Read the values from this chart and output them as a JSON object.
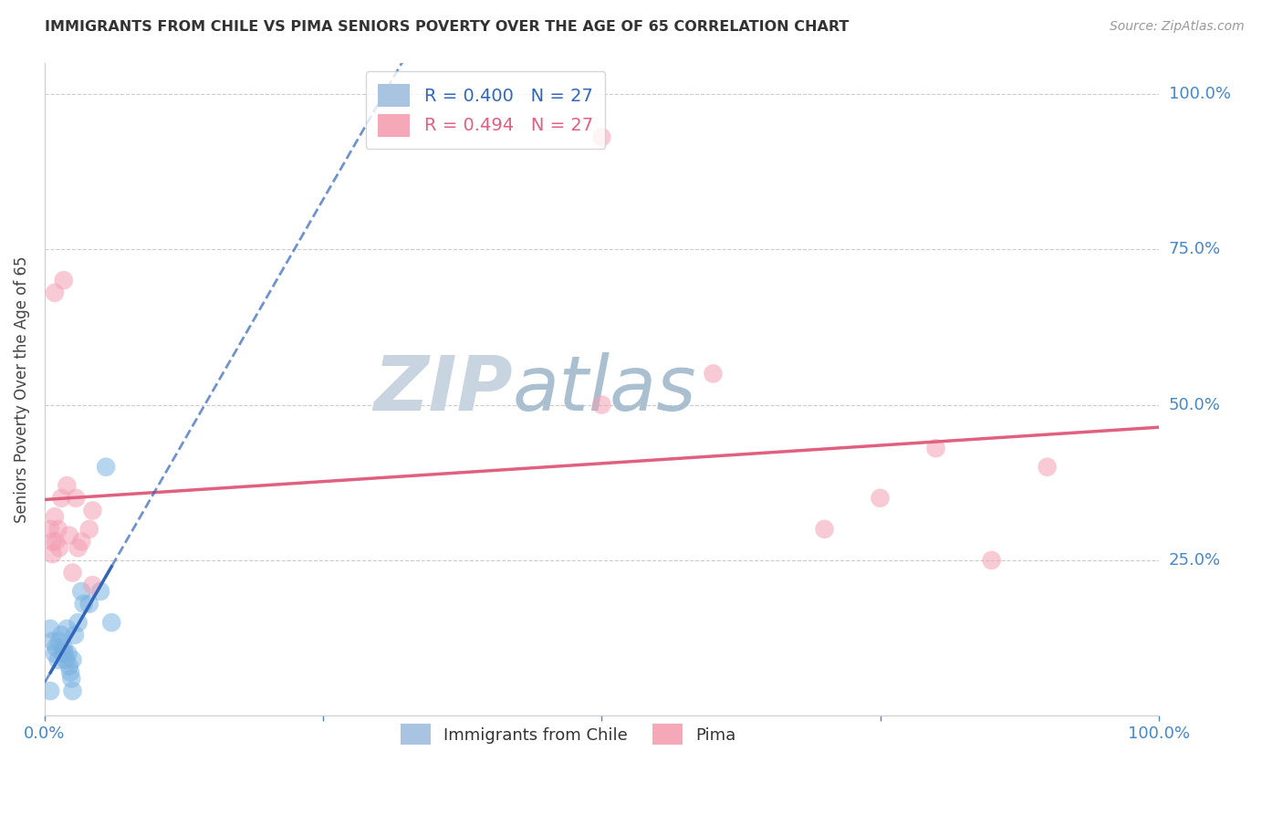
{
  "title": "IMMIGRANTS FROM CHILE VS PIMA SENIORS POVERTY OVER THE AGE OF 65 CORRELATION CHART",
  "source": "Source: ZipAtlas.com",
  "ylabel": "Seniors Poverty Over the Age of 65",
  "chile_points": [
    [
      0.005,
      0.14
    ],
    [
      0.007,
      0.12
    ],
    [
      0.009,
      0.1
    ],
    [
      0.01,
      0.11
    ],
    [
      0.012,
      0.09
    ],
    [
      0.013,
      0.12
    ],
    [
      0.015,
      0.13
    ],
    [
      0.016,
      0.1
    ],
    [
      0.017,
      0.11
    ],
    [
      0.018,
      0.1
    ],
    [
      0.019,
      0.09
    ],
    [
      0.02,
      0.14
    ],
    [
      0.021,
      0.1
    ],
    [
      0.022,
      0.08
    ],
    [
      0.023,
      0.07
    ],
    [
      0.024,
      0.06
    ],
    [
      0.025,
      0.09
    ],
    [
      0.027,
      0.13
    ],
    [
      0.03,
      0.15
    ],
    [
      0.033,
      0.2
    ],
    [
      0.035,
      0.18
    ],
    [
      0.04,
      0.18
    ],
    [
      0.05,
      0.2
    ],
    [
      0.055,
      0.4
    ],
    [
      0.06,
      0.15
    ],
    [
      0.005,
      0.04
    ],
    [
      0.025,
      0.04
    ]
  ],
  "pima_points": [
    [
      0.005,
      0.3
    ],
    [
      0.007,
      0.28
    ],
    [
      0.009,
      0.32
    ],
    [
      0.01,
      0.28
    ],
    [
      0.012,
      0.3
    ],
    [
      0.013,
      0.27
    ],
    [
      0.015,
      0.35
    ],
    [
      0.017,
      0.7
    ],
    [
      0.02,
      0.37
    ],
    [
      0.022,
      0.29
    ],
    [
      0.025,
      0.23
    ],
    [
      0.028,
      0.35
    ],
    [
      0.03,
      0.27
    ],
    [
      0.033,
      0.28
    ],
    [
      0.04,
      0.3
    ],
    [
      0.043,
      0.21
    ],
    [
      0.009,
      0.68
    ],
    [
      0.5,
      0.5
    ],
    [
      0.6,
      0.55
    ],
    [
      0.7,
      0.3
    ],
    [
      0.75,
      0.35
    ],
    [
      0.8,
      0.43
    ],
    [
      0.85,
      0.25
    ],
    [
      0.9,
      0.4
    ],
    [
      0.5,
      0.93
    ],
    [
      0.043,
      0.33
    ],
    [
      0.007,
      0.26
    ]
  ],
  "chile_color": "#7bb3e0",
  "pima_color": "#f4a0b5",
  "chile_line_color": "#3366bb",
  "pima_line_color": "#e06080",
  "background_color": "#ffffff",
  "grid_color": "#cccccc",
  "title_color": "#333333",
  "source_color": "#999999",
  "axis_label_color": "#4488cc",
  "watermark_zip": "ZIP",
  "watermark_atlas": "atlas",
  "watermark_color_zip": "#c8d4e0",
  "watermark_color_atlas": "#aabfd0"
}
